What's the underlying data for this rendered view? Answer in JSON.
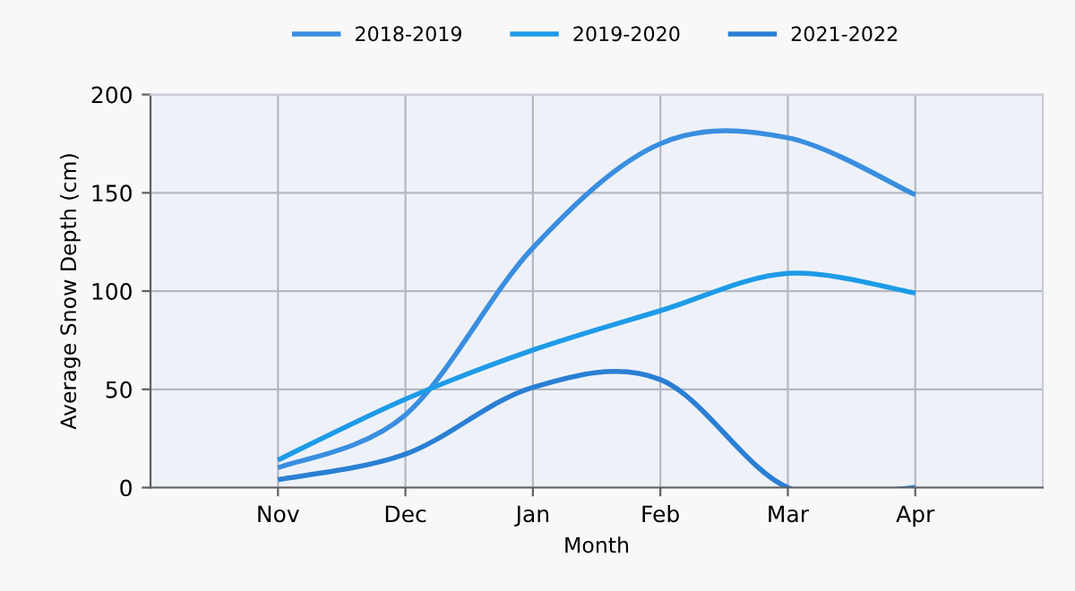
{
  "chart_data": {
    "type": "line",
    "xlabel": "Month",
    "ylabel": "Average Snow Depth (cm)",
    "categories": [
      "Nov",
      "Dec",
      "Jan",
      "Feb",
      "Mar",
      "Apr"
    ],
    "series": [
      {
        "name": "2018-2019",
        "color": "#3a8ee0",
        "values": [
          10,
          37,
          122,
          175,
          178,
          149
        ]
      },
      {
        "name": "2019-2020",
        "color": "#1e9be8",
        "values": [
          14,
          45,
          70,
          90,
          109,
          99
        ]
      },
      {
        "name": "2021-2022",
        "color": "#2a7fd4",
        "values": [
          4,
          17,
          51,
          55,
          0,
          0
        ]
      }
    ],
    "ylim": [
      0,
      200
    ],
    "yticks": [
      0,
      50,
      100,
      150,
      200
    ],
    "grid": true,
    "legend": "top",
    "marker": "none",
    "line_style": "solid"
  }
}
